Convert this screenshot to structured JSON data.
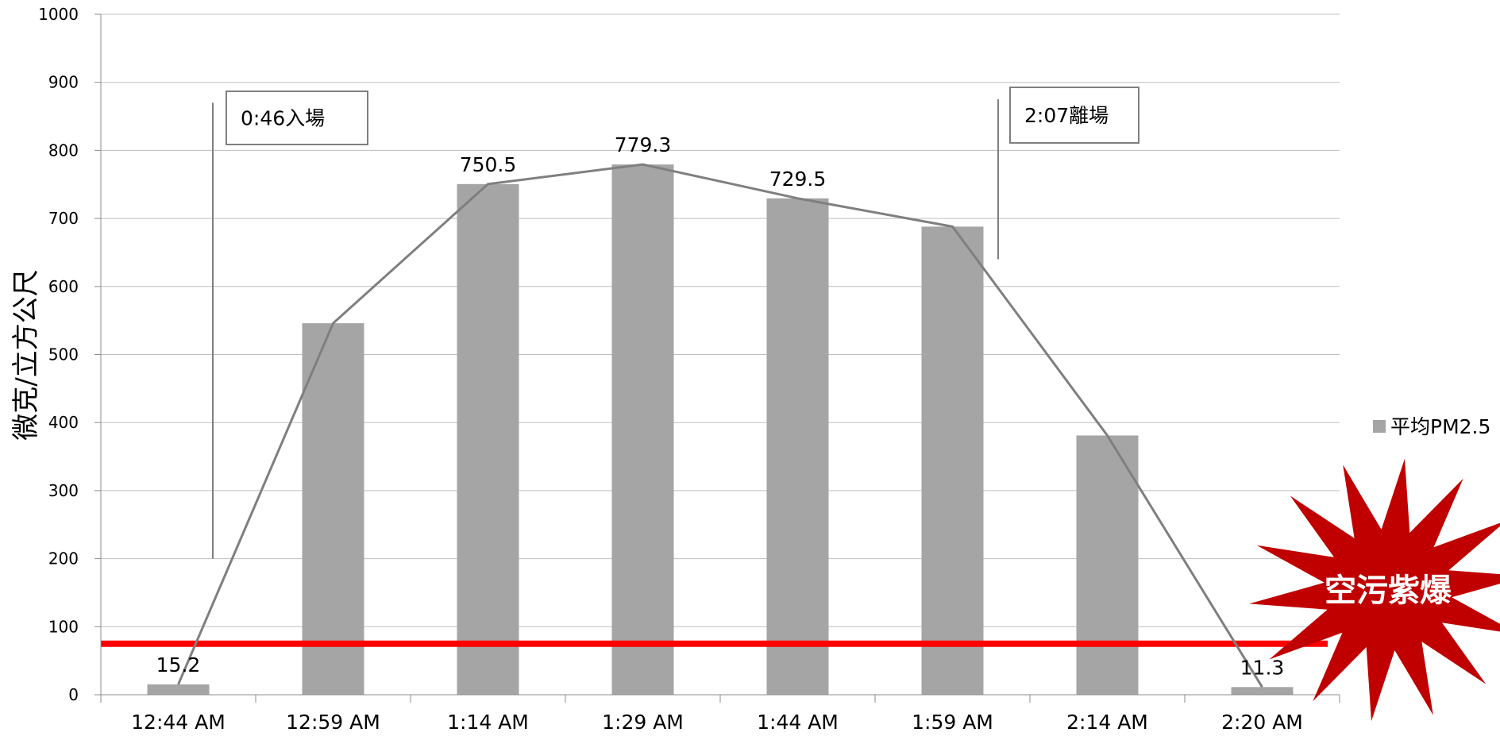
{
  "chart_data": {
    "type": "bar",
    "categories": [
      "12:44 AM",
      "12:59 AM",
      "1:14 AM",
      "1:29 AM",
      "1:44 AM",
      "1:59 AM",
      "2:14 AM",
      "2:20 AM"
    ],
    "series": [
      {
        "name": "平均PM2.5",
        "values": [
          15.2,
          546,
          750.5,
          779.3,
          729.5,
          688,
          381,
          11.3
        ],
        "color": "#a5a5a5"
      }
    ],
    "trend_line": {
      "values": [
        15.2,
        546,
        750.5,
        779.3,
        729.5,
        688,
        381,
        11.3
      ],
      "color": "#7f7f7f"
    },
    "data_labels": [
      {
        "index": 0,
        "text": "15.2"
      },
      {
        "index": 2,
        "text": "750.5"
      },
      {
        "index": 3,
        "text": "779.3"
      },
      {
        "index": 4,
        "text": "729.5"
      },
      {
        "index": 7,
        "text": "11.3"
      }
    ],
    "ylabel": "微克/立方公尺",
    "xlabel": "",
    "ylim": [
      0,
      1000
    ],
    "yticks": [
      0,
      100,
      200,
      300,
      400,
      500,
      600,
      700,
      800,
      900,
      1000
    ],
    "grid": true,
    "threshold_line": {
      "value": 75,
      "color": "#ff0000"
    },
    "legend": {
      "position": "right",
      "label": "平均PM2.5"
    },
    "annotations": [
      {
        "text": "0:46入場",
        "marker_y_range": [
          200,
          870
        ]
      },
      {
        "text": "2:07離場",
        "marker_y_range": [
          640,
          875
        ]
      }
    ],
    "badge": {
      "text": "空污紫爆",
      "color": "#c00000"
    }
  }
}
